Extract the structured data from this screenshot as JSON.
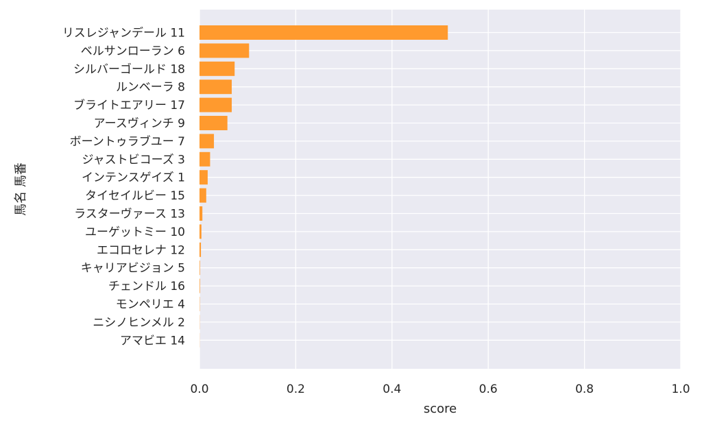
{
  "chart_data": {
    "type": "bar",
    "orientation": "horizontal",
    "title": "",
    "xlabel": "score",
    "ylabel": "馬名 馬番",
    "xlim": [
      0,
      1
    ],
    "x_ticks": [
      "0.0",
      "0.2",
      "0.4",
      "0.6",
      "0.8",
      "1.0"
    ],
    "grid": true,
    "bar_color": "#ff9a2e",
    "background_color": "#eaeaf2",
    "categories": [
      "リスレジャンデール 11",
      "ベルサンローラン 6",
      "シルバーゴールド 18",
      "ルンベーラ 8",
      "ブライトエアリー 17",
      "アースヴィンチ 9",
      "ボーントゥラブユー 7",
      "ジャストビコーズ 3",
      "インテンスゲイズ 1",
      "タイセイルビー 15",
      "ラスターヴァース 13",
      "ユーゲットミー 10",
      "エコロセレナ 12",
      "キャリアビジョン 5",
      "チェンドル 16",
      "モンペリエ 4",
      "ニシノヒンメル 2",
      "アマビエ 14"
    ],
    "values": [
      0.516,
      0.103,
      0.073,
      0.067,
      0.067,
      0.058,
      0.03,
      0.022,
      0.017,
      0.014,
      0.006,
      0.004,
      0.003,
      0.001,
      0.001,
      0.0005,
      0.0003,
      0.0002
    ]
  }
}
